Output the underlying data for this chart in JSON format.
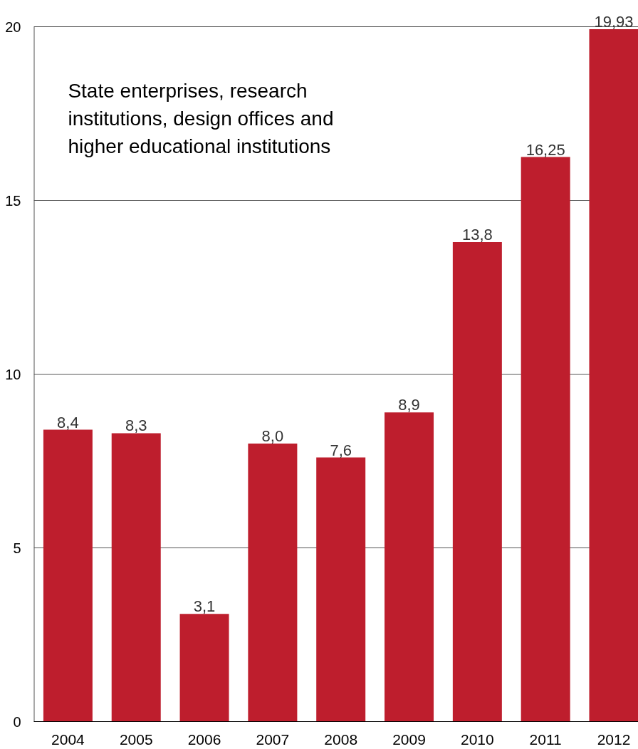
{
  "chart_data": {
    "type": "bar",
    "title": "State enterprises, research institutions, design offices and higher educational institutions",
    "categories": [
      "2004",
      "2005",
      "2006",
      "2007",
      "2008",
      "2009",
      "2010",
      "2011",
      "2012"
    ],
    "values": [
      8.4,
      8.3,
      3.1,
      8.0,
      7.6,
      8.9,
      13.8,
      16.25,
      19.93
    ],
    "value_labels": [
      "8,4",
      "8,3",
      "3,1",
      "8,0",
      "7,6",
      "8,9",
      "13,8",
      "16,25",
      "19,93"
    ],
    "color": "#be1e2d",
    "ylim": [
      0,
      20
    ],
    "yticks": [
      0,
      5,
      10,
      15,
      20
    ],
    "grid": "y"
  }
}
